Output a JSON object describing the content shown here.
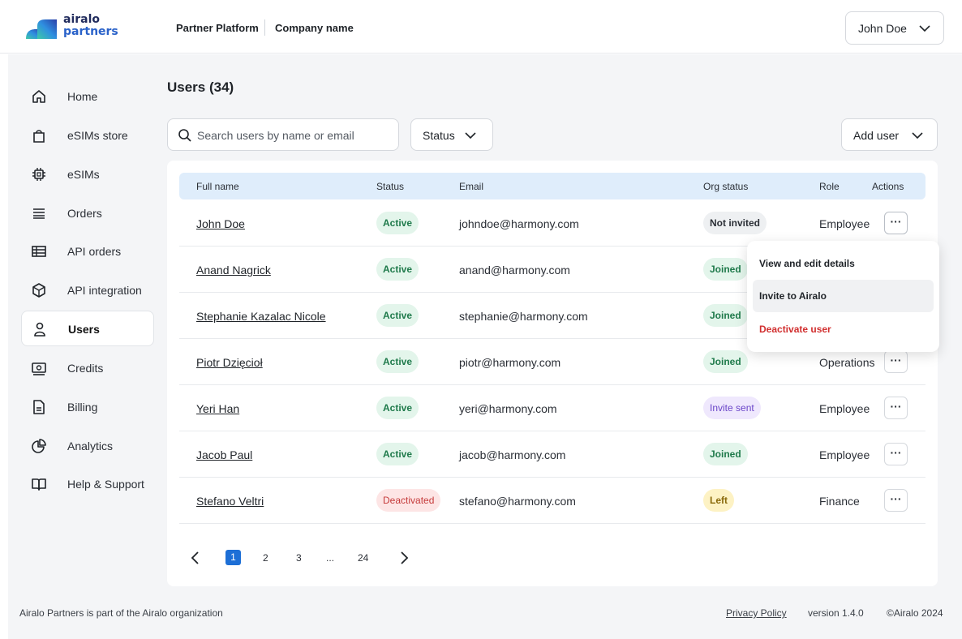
{
  "header": {
    "logo_line1": "airalo",
    "logo_line2": "partners",
    "platform": "Partner Platform",
    "company": "Company name",
    "user_name": "John Doe"
  },
  "sidebar": {
    "items": [
      {
        "label": "Home",
        "icon": "home-icon"
      },
      {
        "label": "eSIMs store",
        "icon": "shopping-bag-icon"
      },
      {
        "label": "eSIMs",
        "icon": "chip-icon"
      },
      {
        "label": "Orders",
        "icon": "list-icon"
      },
      {
        "label": "API orders",
        "icon": "table-icon"
      },
      {
        "label": "API integration",
        "icon": "cube-icon"
      },
      {
        "label": "Users",
        "icon": "user-icon",
        "active": true
      },
      {
        "label": "Credits",
        "icon": "cash-icon"
      },
      {
        "label": "Billing",
        "icon": "document-icon"
      },
      {
        "label": "Analytics",
        "icon": "pie-chart-icon"
      },
      {
        "label": "Help & Support",
        "icon": "book-icon"
      }
    ]
  },
  "main": {
    "title": "Users (34)",
    "search_placeholder": "Search users by name or email",
    "status_filter_label": "Status",
    "add_user_label": "Add user"
  },
  "table": {
    "columns": {
      "full_name": "Full name",
      "status": "Status",
      "email": "Email",
      "org_status": "Org status",
      "role": "Role",
      "actions": "Actions"
    },
    "rows": [
      {
        "name": "John Doe",
        "status": "Active",
        "email": "johndoe@harmony.com",
        "org_status": "Not invited",
        "role": "Employee"
      },
      {
        "name": "Anand Nagrick",
        "status": "Active",
        "email": "anand@harmony.com",
        "org_status": "Joined",
        "role": ""
      },
      {
        "name": "Stephanie Kazalac Nicole",
        "status": "Active",
        "email": "stephanie@harmony.com",
        "org_status": "Joined",
        "role": ""
      },
      {
        "name": "Piotr Dzięcioł",
        "status": "Active",
        "email": "piotr@harmony.com",
        "org_status": "Joined",
        "role": "Operations"
      },
      {
        "name": "Yeri Han",
        "status": "Active",
        "email": "yeri@harmony.com",
        "org_status": "Invite sent",
        "role": "Employee"
      },
      {
        "name": "Jacob Paul",
        "status": "Active",
        "email": "jacob@harmony.com",
        "org_status": "Joined",
        "role": "Employee"
      },
      {
        "name": "Stefano Veltri",
        "status": "Deactivated",
        "email": "stefano@harmony.com",
        "org_status": "Left",
        "role": "Finance"
      }
    ],
    "more_label": "···"
  },
  "actions_menu": {
    "items": [
      "View and edit details",
      "Invite to Airalo",
      "Deactivate user"
    ]
  },
  "pagination": {
    "pages": [
      "1",
      "2",
      "3",
      "...",
      "24"
    ],
    "current": "1"
  },
  "footer": {
    "left": "Airalo Partners is part of the Airalo organization",
    "privacy": "Privacy Policy",
    "version": "version 1.4.0",
    "copyright": "©Airalo 2024"
  },
  "colors": {
    "accent": "#1d6fd6",
    "table_header": "#dfedfb",
    "active_green": "#1f7a4b",
    "danger": "#d12f2f"
  }
}
